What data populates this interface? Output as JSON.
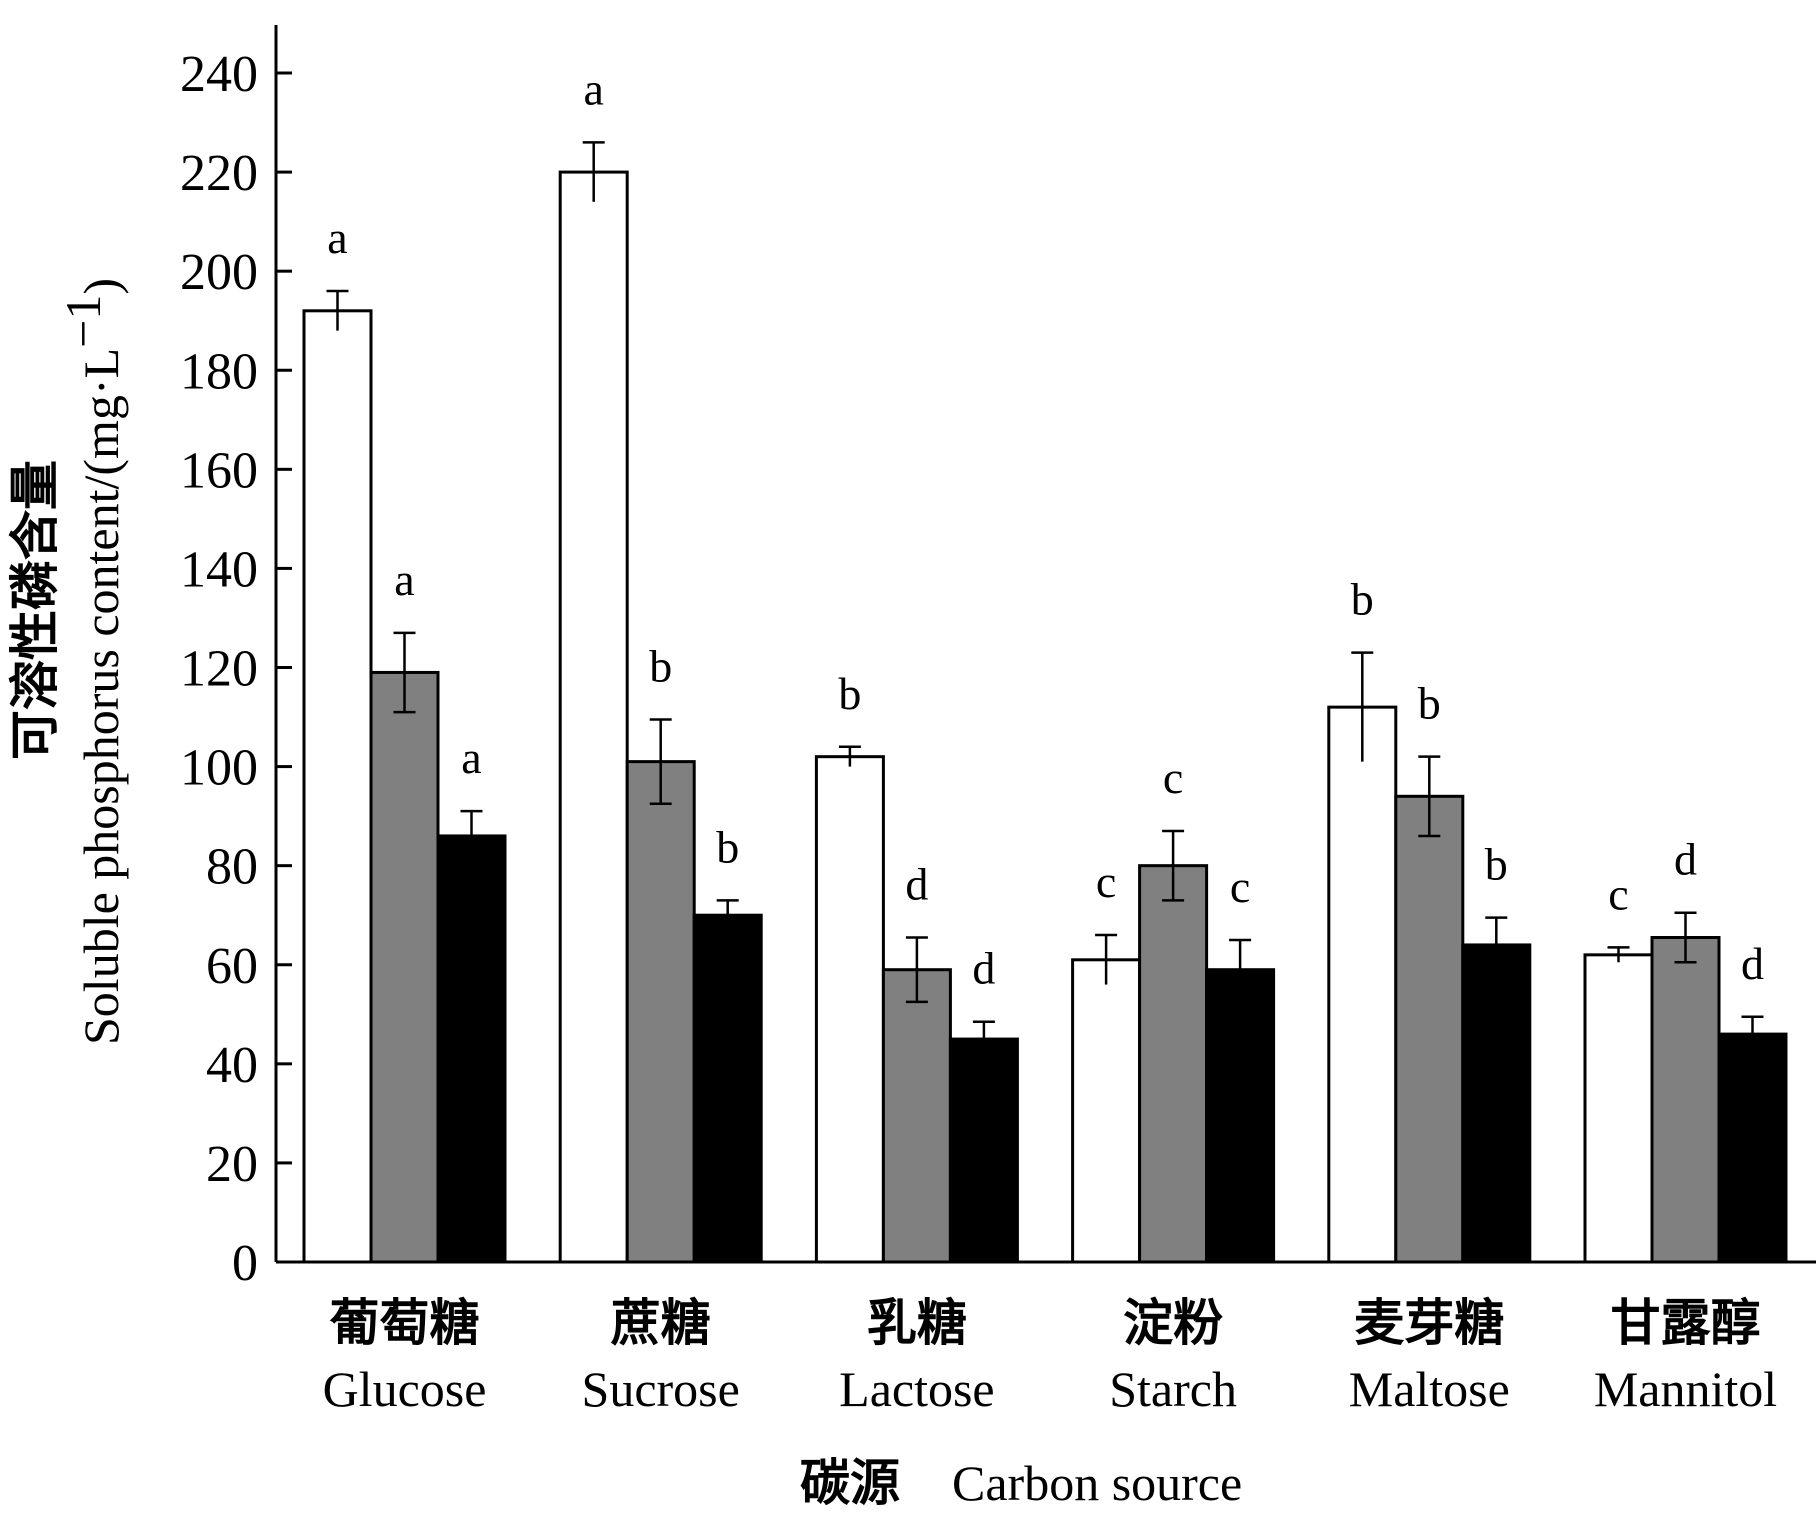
{
  "chart_data": {
    "type": "bar",
    "title": "",
    "ylim": [
      0,
      250
    ],
    "yticks": [
      0,
      20,
      40,
      60,
      80,
      100,
      120,
      140,
      160,
      180,
      200,
      220,
      240
    ],
    "ylabel": {
      "cn": "可溶性磷含量",
      "en": "Soluble phosphorus content/(mg·L",
      "sup": "−1",
      "close": ")"
    },
    "xlabel": {
      "cn": "碳源",
      "en": "Carbon source"
    },
    "categories": [
      {
        "cn": "葡萄糖",
        "en": "Glucose"
      },
      {
        "cn": "蔗糖",
        "en": "Sucrose"
      },
      {
        "cn": "乳糖",
        "en": "Lactose"
      },
      {
        "cn": "淀粉",
        "en": "Starch"
      },
      {
        "cn": "麦芽糖",
        "en": "Maltose"
      },
      {
        "cn": "甘露醇",
        "en": "Mannitol"
      }
    ],
    "series": [
      {
        "color": "#ffffff",
        "values": [
          192,
          220,
          102,
          61,
          112,
          62
        ],
        "errors": [
          4,
          6,
          2,
          5,
          11,
          1.5
        ],
        "letters": [
          "a",
          "a",
          "b",
          "c",
          "b",
          "c"
        ]
      },
      {
        "color": "#808080",
        "values": [
          119,
          101,
          59,
          80,
          94,
          65.5
        ],
        "errors": [
          8,
          8.5,
          6.5,
          7,
          8,
          5
        ],
        "letters": [
          "a",
          "b",
          "d",
          "c",
          "b",
          "d"
        ]
      },
      {
        "color": "#000000",
        "values": [
          86,
          70,
          45,
          59,
          64,
          46
        ],
        "errors": [
          5,
          3,
          3.5,
          6,
          5.5,
          3.5
        ],
        "letters": [
          "a",
          "b",
          "d",
          "c",
          "b",
          "d"
        ]
      }
    ],
    "grid": false,
    "legend": "none"
  }
}
